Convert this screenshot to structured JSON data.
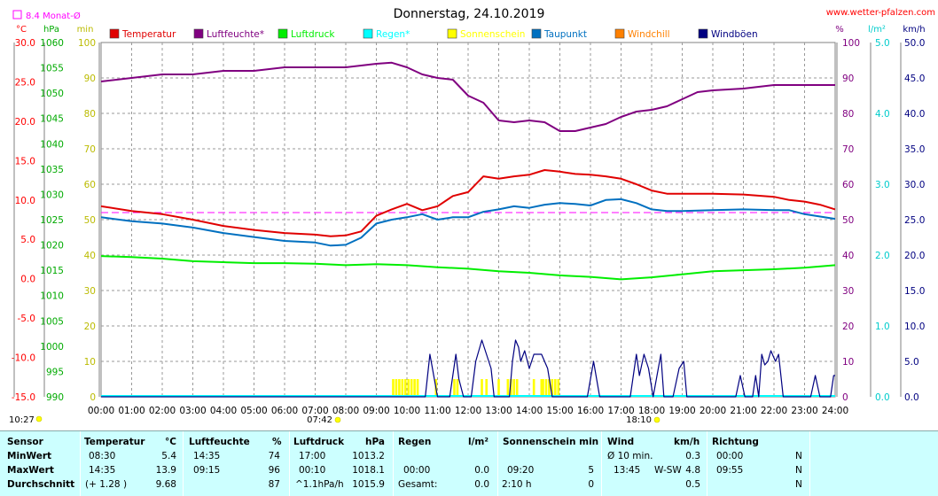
{
  "header": {
    "title": "Donnerstag, 24.10.2019",
    "site": "www.wetter-pfalzen.com",
    "month_avg_label": "8.4 Monat-Ø",
    "first_time": "10:27",
    "sunrise_time": "07:42",
    "sunset_time": "18:10"
  },
  "colors": {
    "temperatur": "#e00000",
    "luftfeuchte": "#800080",
    "luftdruck": "#00ee00",
    "regen": "#00ffff",
    "sonnenschein": "#ffff00",
    "taupunkt": "#0070c0",
    "windchill": "#ff8000",
    "windboeen": "#000080",
    "monat_avg": "#ff00ff",
    "stats_bg": "#ccffff"
  },
  "chart_data": {
    "type": "line",
    "title": "Donnerstag, 24.10.2019",
    "x_ticks": [
      "00:00",
      "01:00",
      "02:00",
      "03:00",
      "04:00",
      "05:00",
      "06:00",
      "07:00",
      "08:00",
      "09:00",
      "10:00",
      "11:00",
      "12:00",
      "13:00",
      "14:00",
      "15:00",
      "16:00",
      "17:00",
      "18:00",
      "19:00",
      "20:00",
      "21:00",
      "22:00",
      "23:00",
      "24:00"
    ],
    "xlim": [
      0,
      24
    ],
    "grid": true,
    "legend_position": "top",
    "axes": {
      "celsius": {
        "unit": "°C",
        "ylim": [
          -15,
          30
        ],
        "ticks": [
          "30.0",
          "25.0",
          "20.0",
          "15.0",
          "10.0",
          "5.0",
          "0.0",
          "-5.0",
          "-10.0",
          "-15.0"
        ]
      },
      "hpa": {
        "unit": "hPa",
        "ylim": [
          990,
          1060
        ],
        "ticks": [
          "1060",
          "1055",
          "1050",
          "1045",
          "1040",
          "1035",
          "1030",
          "1025",
          "1020",
          "1015",
          "1010",
          "1005",
          "1000",
          "995",
          "990"
        ]
      },
      "min": {
        "unit": "min",
        "ylim": [
          0,
          100
        ],
        "ticks": [
          "100",
          "90",
          "80",
          "70",
          "60",
          "50",
          "40",
          "30",
          "20",
          "10",
          "0"
        ]
      },
      "percent": {
        "unit": "%",
        "ylim": [
          0,
          100
        ],
        "ticks": [
          "100",
          "90",
          "80",
          "70",
          "60",
          "50",
          "40",
          "30",
          "20",
          "10",
          "0"
        ]
      },
      "lm2": {
        "unit": "l/m²",
        "ylim": [
          0,
          5
        ],
        "ticks": [
          "5.0",
          "4.0",
          "3.0",
          "2.0",
          "1.0",
          "0.0"
        ]
      },
      "kmh": {
        "unit": "km/h",
        "ylim": [
          0,
          50
        ],
        "ticks": [
          "50.0",
          "45.0",
          "40.0",
          "35.0",
          "30.0",
          "25.0",
          "20.0",
          "15.0",
          "10.0",
          "5.0",
          "0.0"
        ]
      }
    },
    "monat_avg": 8.4,
    "series": [
      {
        "name": "Temperatur",
        "axis": "celsius",
        "color": "#e00000",
        "points": [
          [
            0,
            9.2
          ],
          [
            1,
            8.6
          ],
          [
            2,
            8.2
          ],
          [
            3,
            7.5
          ],
          [
            4,
            6.7
          ],
          [
            5,
            6.2
          ],
          [
            6,
            5.8
          ],
          [
            7,
            5.6
          ],
          [
            7.5,
            5.4
          ],
          [
            8,
            5.5
          ],
          [
            8.5,
            6.0
          ],
          [
            9,
            8.0
          ],
          [
            9.5,
            8.8
          ],
          [
            10,
            9.5
          ],
          [
            10.5,
            8.7
          ],
          [
            11,
            9.2
          ],
          [
            11.5,
            10.5
          ],
          [
            12,
            11.0
          ],
          [
            12.5,
            13.0
          ],
          [
            13,
            12.7
          ],
          [
            13.5,
            13.0
          ],
          [
            14,
            13.2
          ],
          [
            14.5,
            13.8
          ],
          [
            15,
            13.6
          ],
          [
            15.5,
            13.3
          ],
          [
            16,
            13.2
          ],
          [
            16.5,
            13.0
          ],
          [
            17,
            12.7
          ],
          [
            17.5,
            12.0
          ],
          [
            18,
            11.2
          ],
          [
            18.5,
            10.8
          ],
          [
            19,
            10.8
          ],
          [
            20,
            10.8
          ],
          [
            21,
            10.7
          ],
          [
            22,
            10.4
          ],
          [
            22.5,
            10.0
          ],
          [
            23,
            9.8
          ],
          [
            23.5,
            9.4
          ],
          [
            24,
            8.8
          ]
        ]
      },
      {
        "name": "Luftfeuchte*",
        "axis": "percent",
        "color": "#800080",
        "points": [
          [
            0,
            89
          ],
          [
            1,
            90
          ],
          [
            2,
            91
          ],
          [
            3,
            91
          ],
          [
            4,
            92
          ],
          [
            5,
            92
          ],
          [
            6,
            93
          ],
          [
            7,
            93
          ],
          [
            8,
            93
          ],
          [
            9,
            94
          ],
          [
            9.5,
            94.3
          ],
          [
            10,
            93
          ],
          [
            10.5,
            91
          ],
          [
            11,
            90
          ],
          [
            11.5,
            89.5
          ],
          [
            12,
            85
          ],
          [
            12.5,
            83
          ],
          [
            13,
            78
          ],
          [
            13.5,
            77.5
          ],
          [
            14,
            78
          ],
          [
            14.5,
            77.5
          ],
          [
            15,
            75
          ],
          [
            15.5,
            75
          ],
          [
            16,
            76
          ],
          [
            16.5,
            77
          ],
          [
            17,
            79
          ],
          [
            17.5,
            80.5
          ],
          [
            18,
            81
          ],
          [
            18.5,
            82
          ],
          [
            19,
            84
          ],
          [
            19.5,
            86
          ],
          [
            20,
            86.5
          ],
          [
            21,
            87
          ],
          [
            22,
            88
          ],
          [
            23,
            88
          ],
          [
            24,
            88
          ]
        ]
      },
      {
        "name": "Luftdruck",
        "axis": "hpa",
        "color": "#00ee00",
        "points": [
          [
            0,
            1017.8
          ],
          [
            1,
            1017.6
          ],
          [
            2,
            1017.3
          ],
          [
            3,
            1016.8
          ],
          [
            4,
            1016.6
          ],
          [
            5,
            1016.4
          ],
          [
            6,
            1016.4
          ],
          [
            7,
            1016.3
          ],
          [
            8,
            1016.0
          ],
          [
            9,
            1016.2
          ],
          [
            10,
            1016.0
          ],
          [
            11,
            1015.6
          ],
          [
            12,
            1015.3
          ],
          [
            13,
            1014.8
          ],
          [
            14,
            1014.5
          ],
          [
            15,
            1014.0
          ],
          [
            16,
            1013.7
          ],
          [
            17,
            1013.2
          ],
          [
            18,
            1013.6
          ],
          [
            19,
            1014.2
          ],
          [
            20,
            1014.8
          ],
          [
            21,
            1015.0
          ],
          [
            22,
            1015.2
          ],
          [
            23,
            1015.5
          ],
          [
            24,
            1016.0
          ]
        ]
      },
      {
        "name": "Taupunkt",
        "axis": "celsius",
        "color": "#0070c0",
        "points": [
          [
            0,
            7.8
          ],
          [
            1,
            7.3
          ],
          [
            2,
            7.0
          ],
          [
            3,
            6.5
          ],
          [
            4,
            5.8
          ],
          [
            5,
            5.3
          ],
          [
            6,
            4.8
          ],
          [
            7,
            4.6
          ],
          [
            7.5,
            4.2
          ],
          [
            8,
            4.3
          ],
          [
            8.5,
            5.2
          ],
          [
            9,
            7.0
          ],
          [
            9.5,
            7.5
          ],
          [
            10,
            7.8
          ],
          [
            10.5,
            8.2
          ],
          [
            11,
            7.5
          ],
          [
            11.5,
            7.8
          ],
          [
            12,
            7.8
          ],
          [
            12.5,
            8.5
          ],
          [
            13,
            8.8
          ],
          [
            13.5,
            9.2
          ],
          [
            14,
            9.0
          ],
          [
            14.5,
            9.4
          ],
          [
            15,
            9.6
          ],
          [
            15.5,
            9.5
          ],
          [
            16,
            9.3
          ],
          [
            16.5,
            10.0
          ],
          [
            17,
            10.1
          ],
          [
            17.5,
            9.6
          ],
          [
            18,
            8.8
          ],
          [
            18.5,
            8.6
          ],
          [
            19,
            8.6
          ],
          [
            20,
            8.7
          ],
          [
            21,
            8.8
          ],
          [
            22,
            8.7
          ],
          [
            22.5,
            8.7
          ],
          [
            23,
            8.2
          ],
          [
            24,
            7.6
          ]
        ]
      },
      {
        "name": "Windböen",
        "axis": "kmh",
        "color": "#000080",
        "points": [
          [
            0,
            0
          ],
          [
            10.6,
            0
          ],
          [
            10.75,
            6
          ],
          [
            11.0,
            0
          ],
          [
            11.4,
            0
          ],
          [
            11.6,
            6
          ],
          [
            11.7,
            2.5
          ],
          [
            11.85,
            0
          ],
          [
            12.1,
            0
          ],
          [
            12.25,
            5
          ],
          [
            12.45,
            8
          ],
          [
            12.6,
            6
          ],
          [
            12.75,
            4
          ],
          [
            12.85,
            0
          ],
          [
            13.35,
            0
          ],
          [
            13.45,
            5
          ],
          [
            13.55,
            8
          ],
          [
            13.65,
            7
          ],
          [
            13.72,
            5
          ],
          [
            13.85,
            6.5
          ],
          [
            14.0,
            4
          ],
          [
            14.15,
            6
          ],
          [
            14.4,
            6
          ],
          [
            14.6,
            4
          ],
          [
            14.75,
            0
          ],
          [
            15.9,
            0
          ],
          [
            16.1,
            5
          ],
          [
            16.3,
            0
          ],
          [
            17.3,
            0
          ],
          [
            17.5,
            6
          ],
          [
            17.6,
            3
          ],
          [
            17.75,
            6
          ],
          [
            17.9,
            4
          ],
          [
            18.05,
            0
          ],
          [
            18.3,
            6
          ],
          [
            18.4,
            0
          ],
          [
            18.7,
            0
          ],
          [
            18.9,
            4
          ],
          [
            19.05,
            5
          ],
          [
            19.15,
            0
          ],
          [
            20.75,
            0
          ],
          [
            20.9,
            3
          ],
          [
            21.05,
            0
          ],
          [
            21.3,
            0
          ],
          [
            21.4,
            3
          ],
          [
            21.5,
            0
          ],
          [
            21.6,
            6
          ],
          [
            21.7,
            4.5
          ],
          [
            21.8,
            5
          ],
          [
            21.9,
            6.5
          ],
          [
            22.05,
            5
          ],
          [
            22.15,
            6
          ],
          [
            22.3,
            0
          ],
          [
            23.2,
            0
          ],
          [
            23.35,
            3
          ],
          [
            23.5,
            0
          ],
          [
            23.85,
            0
          ],
          [
            23.95,
            3
          ],
          [
            24,
            3
          ]
        ]
      }
    ],
    "sunshine": {
      "name": "Sonnenschein",
      "axis": "min",
      "color": "#ffff00",
      "x": [
        9.55,
        9.65,
        9.75,
        9.85,
        9.95,
        10.05,
        10.15,
        10.25,
        10.35,
        10.95,
        11.55,
        11.65,
        12.45,
        12.6,
        13.0,
        13.3,
        13.4,
        13.5,
        13.6,
        14.15,
        14.4,
        14.45,
        14.55,
        14.65,
        14.75,
        14.85,
        14.95
      ],
      "values": [
        5,
        5,
        5,
        5,
        5,
        5,
        5,
        5,
        5,
        5,
        5,
        5,
        5,
        5,
        5,
        5,
        5,
        5,
        5,
        5,
        5,
        5,
        5,
        5,
        5,
        5,
        5
      ]
    },
    "legend": [
      "Temperatur",
      "Luftfeuchte*",
      "Luftdruck",
      "Regen*",
      "Sonnenschein",
      "Taupunkt",
      "Windchill",
      "Windböen"
    ]
  },
  "stats": {
    "headers": {
      "sensor": "Sensor",
      "temp": "Temperatur",
      "temp_unit": "°C",
      "hum": "Luftfeuchte",
      "hum_unit": "%",
      "press": "Luftdruck",
      "press_unit": "hPa",
      "rain": "Regen",
      "rain_unit": "l/m²",
      "sun": "Sonnenschein min",
      "wind": "Wind",
      "wind_unit": "km/h",
      "dir": "Richtung"
    },
    "rows": [
      {
        "label": "MinWert",
        "temp_t": "08:30",
        "temp_v": "5.4",
        "hum_t": "14:35",
        "hum_v": "74",
        "press_t": "17:00",
        "press_v": "1013.2",
        "rain_t": "",
        "rain_v": "",
        "sun_t": "",
        "sun_v": "",
        "wind_t": "Ø 10 min.",
        "wind_d": "",
        "wind_v": "0.3",
        "dir_t": "00:00",
        "dir_v": "N"
      },
      {
        "label": "MaxWert",
        "temp_t": "14:35",
        "temp_v": "13.9",
        "hum_t": "09:15",
        "hum_v": "96",
        "press_t": "00:10",
        "press_v": "1018.1",
        "rain_t": "00:00",
        "rain_v": "0.0",
        "sun_t": "09:20",
        "sun_v": "5",
        "wind_t": "13:45",
        "wind_d": "W-SW",
        "wind_v": "4.8",
        "dir_t": "09:55",
        "dir_v": "N"
      },
      {
        "label": "Durchschnitt",
        "temp_t": "(+ 1.28 )",
        "temp_v": "9.68",
        "hum_t": "",
        "hum_v": "87",
        "press_t": "^1.1hPa/h",
        "press_v": "1015.9",
        "rain_t": "Gesamt:",
        "rain_v": "0.0",
        "sun_t": "2:10 h",
        "sun_v": "0",
        "wind_t": "",
        "wind_d": "",
        "wind_v": "0.5",
        "dir_t": "",
        "dir_v": "N"
      }
    ]
  }
}
